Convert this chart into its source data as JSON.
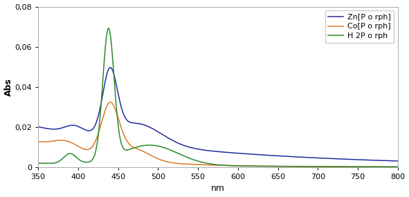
{
  "title": "",
  "xlabel": "nm",
  "ylabel": "Abs",
  "xlim": [
    350,
    800
  ],
  "ylim": [
    0,
    0.08
  ],
  "yticks": [
    0,
    0.02,
    0.04,
    0.06,
    0.08
  ],
  "xticks": [
    350,
    400,
    450,
    500,
    550,
    600,
    650,
    700,
    750,
    800
  ],
  "legend": [
    "Zn[P o rph]",
    "Co[P o rph]",
    "H 2P o rph"
  ],
  "colors": {
    "Zn": "#1f2b9f",
    "Co": "#e07820",
    "H2": "#2a8a2a"
  },
  "plot_bg": "#ffffff"
}
